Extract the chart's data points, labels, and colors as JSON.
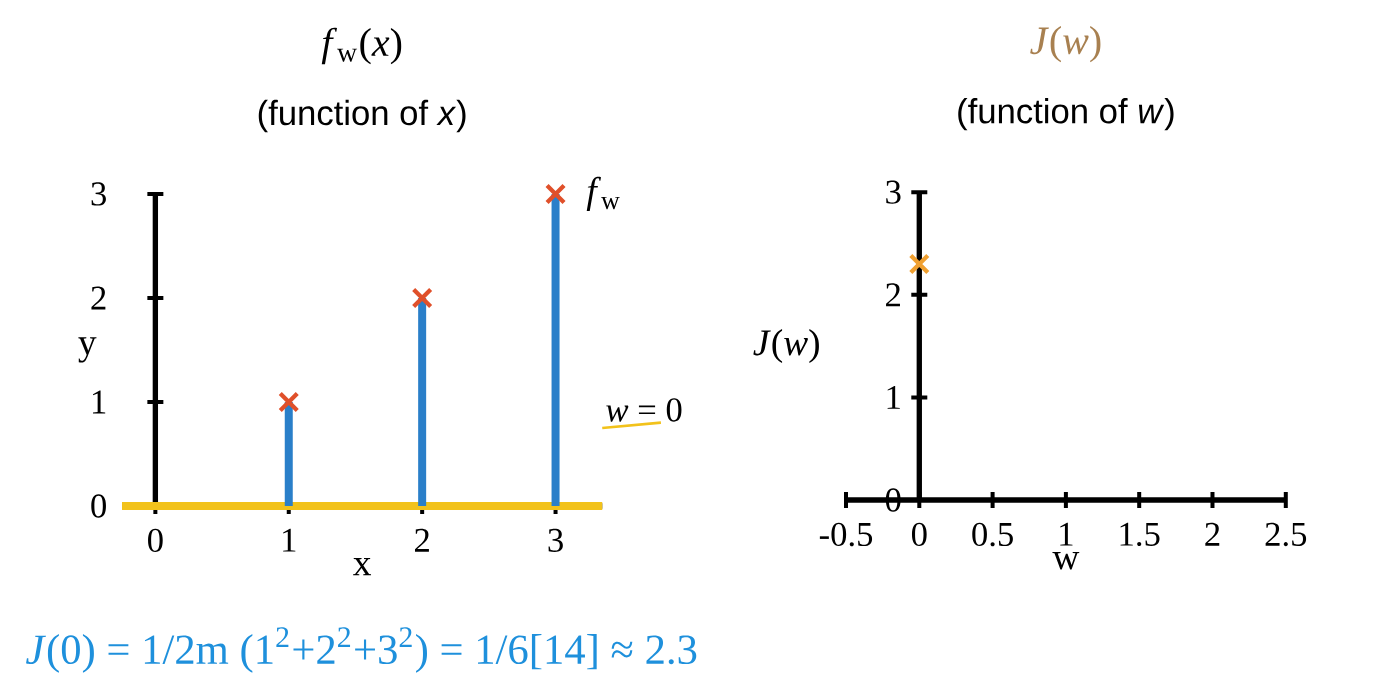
{
  "chart_data": [
    {
      "type": "scatter",
      "title": "*f*$_{w}$(*x*)",
      "subtitle": "(function of *x*)",
      "xlabel": "x",
      "ylabel": "y",
      "xlim": [
        -0.25,
        3.35
      ],
      "ylim": [
        0,
        3
      ],
      "xticks": [
        0,
        1,
        2,
        3
      ],
      "yticks": [
        0,
        1,
        2,
        3
      ],
      "marker": "cross",
      "series": [
        {
          "type": "bar",
          "color": "#2a7fc9",
          "x": [
            1,
            2,
            3
          ],
          "values": [
            1,
            2,
            3
          ]
        },
        {
          "name": "*f*$_{w}$",
          "color": "#e0502a",
          "x": [
            1,
            2,
            3
          ],
          "values": [
            1,
            2,
            3
          ]
        }
      ],
      "ref_lines": [
        {
          "axis": "y",
          "value": 0,
          "label": "*w* = 0",
          "color": "#f2c21b"
        }
      ],
      "annotations": [
        "*J*(0) = 1/2m (1$^{2}$+2$^{2}$+3$^{2}$) = 1/6[14] ≈ 2.3"
      ]
    },
    {
      "type": "scatter",
      "title": "*J*(*w*)",
      "subtitle": "(function of *w*)",
      "xlabel": "w",
      "ylabel": "*J*(*w*)",
      "xlim": [
        -0.5,
        2.5
      ],
      "ylim": [
        0,
        3
      ],
      "xticks": [
        -0.5,
        0,
        0.5,
        1,
        1.5,
        2,
        2.5
      ],
      "yticks": [
        0,
        1,
        2,
        3
      ],
      "marker": "cross",
      "series": [
        {
          "color": "#f0a030",
          "x": [
            0
          ],
          "values": [
            2.3
          ]
        }
      ]
    }
  ]
}
